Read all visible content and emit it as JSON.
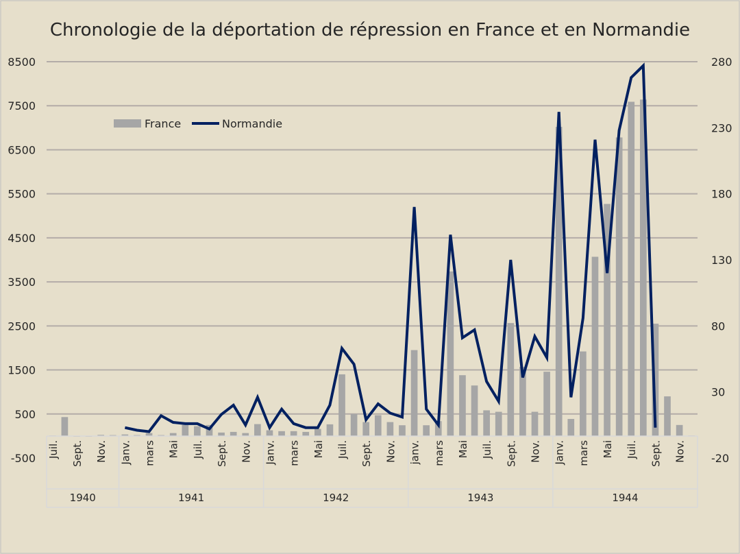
{
  "chart_data": {
    "type": "bar+line",
    "title": "Chronologie de la déportation de répression en France et en Normandie",
    "month_labels": [
      "Juil.",
      "",
      "Sept.",
      "",
      "Nov.",
      "",
      "Janv.",
      "",
      "mars",
      "",
      "Mai",
      "",
      "Juil.",
      "",
      "Sept.",
      "",
      "Nov.",
      "",
      "Janv.",
      "",
      "mars",
      "",
      "Mai",
      "",
      "Juil.",
      "",
      "Sept.",
      "",
      "Nov.",
      "",
      "janv.",
      "",
      "mars",
      "",
      "Mai",
      "",
      "Juil.",
      "",
      "Sept.",
      "",
      "Nov.",
      "",
      "Janv.",
      "",
      "mars",
      "",
      "Mai",
      "",
      "Juil.",
      "",
      "Sept.",
      "",
      "Nov.",
      ""
    ],
    "year_groups": [
      {
        "label": "1940",
        "months": 6
      },
      {
        "label": "1941",
        "months": 12
      },
      {
        "label": "1942",
        "months": 12
      },
      {
        "label": "1943",
        "months": 12
      },
      {
        "label": "1944",
        "months": 12
      }
    ],
    "left_axis": {
      "min": -500,
      "max": 8500,
      "ticks": [
        -500,
        500,
        1500,
        2500,
        3500,
        4500,
        5500,
        6500,
        7500,
        8500
      ]
    },
    "right_axis": {
      "min": -20,
      "max": 280,
      "ticks": [
        -20,
        30,
        80,
        130,
        180,
        230,
        280
      ]
    },
    "grid": true,
    "legend_position": "top-left",
    "series": [
      {
        "name": "France",
        "type": "bar",
        "axis": "left",
        "color": "#a6a6a6",
        "values": [
          10,
          430,
          0,
          0,
          25,
          20,
          35,
          20,
          67,
          20,
          67,
          250,
          223,
          250,
          78,
          93,
          67,
          270,
          130,
          110,
          110,
          93,
          160,
          265,
          1400,
          498,
          316,
          472,
          316,
          244,
          1951,
          244,
          337,
          3737,
          1381,
          1147,
          583,
          550,
          2565,
          1570,
          550,
          1460,
          7020,
          387,
          1920,
          4070,
          5270,
          6780,
          7590,
          7640,
          2550,
          900,
          250,
          10
        ]
      },
      {
        "name": "Normandie",
        "type": "line",
        "axis": "right",
        "color": "#002060",
        "values": [
          null,
          null,
          null,
          null,
          null,
          null,
          3,
          1,
          0,
          12,
          7,
          6,
          6,
          2,
          13,
          20,
          5,
          26,
          3,
          17,
          6,
          3,
          3,
          20,
          63,
          51,
          9,
          21,
          14,
          11,
          170,
          17,
          5,
          149,
          71,
          77,
          38,
          23,
          130,
          41,
          72,
          56,
          242,
          26,
          86,
          221,
          120,
          228,
          268,
          277,
          3,
          null,
          null,
          null
        ]
      }
    ]
  }
}
